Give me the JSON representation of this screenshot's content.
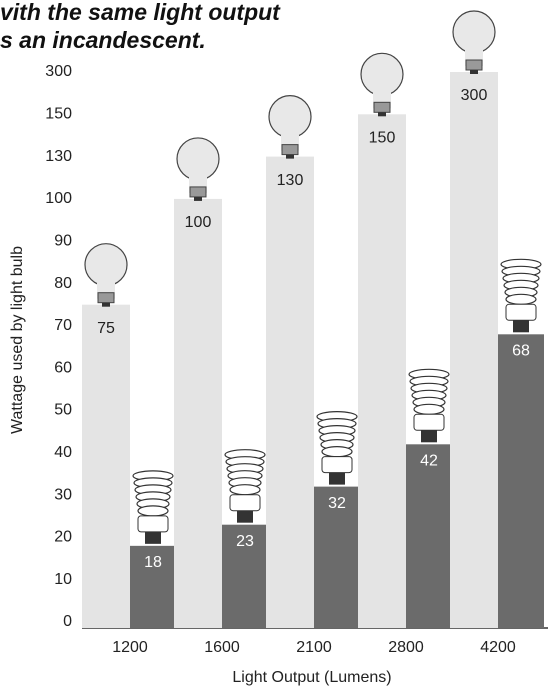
{
  "chart_data": {
    "type": "bar",
    "title_lines": [
      "vith the same light output",
      "s an incandescent."
    ],
    "y_label": "Wattage used by light bulb",
    "x_label": "Light Output (Lumens)",
    "categories": [
      "1200",
      "1600",
      "2100",
      "2800",
      "4200"
    ],
    "series": [
      {
        "color": "#e4e4e4",
        "values": [
          75,
          100,
          130,
          150,
          300
        ]
      },
      {
        "color": "#6b6b6b",
        "values": [
          18,
          23,
          32,
          42,
          68
        ]
      }
    ],
    "ylim": [
      0,
      300
    ],
    "yticks": [
      0,
      10,
      20,
      30,
      40,
      50,
      60,
      70,
      80,
      90,
      100,
      130,
      150,
      300
    ]
  }
}
